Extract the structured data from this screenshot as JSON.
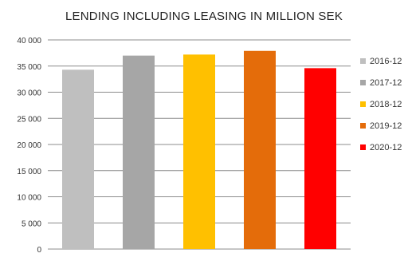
{
  "chart_data": {
    "type": "bar",
    "title": "LENDING INCLUDING LEASING IN MILLION SEK",
    "xlabel": "",
    "ylabel": "",
    "categories": [
      "2016-12",
      "2017-12",
      "2018-12",
      "2019-12",
      "2020-12"
    ],
    "values": [
      34300,
      37000,
      37200,
      37900,
      34600
    ],
    "colors": [
      "#bfbfbf",
      "#a6a6a6",
      "#ffc000",
      "#e46c0a",
      "#ff0000"
    ],
    "ylim": [
      0,
      40000
    ],
    "y_ticks": [
      0,
      5000,
      10000,
      15000,
      20000,
      25000,
      30000,
      35000,
      40000
    ],
    "y_tick_labels": [
      "0",
      "5 000",
      "10 000",
      "15 000",
      "20 000",
      "25 000",
      "30 000",
      "35 000",
      "40 000"
    ],
    "grid": true,
    "legend_position": "right"
  }
}
